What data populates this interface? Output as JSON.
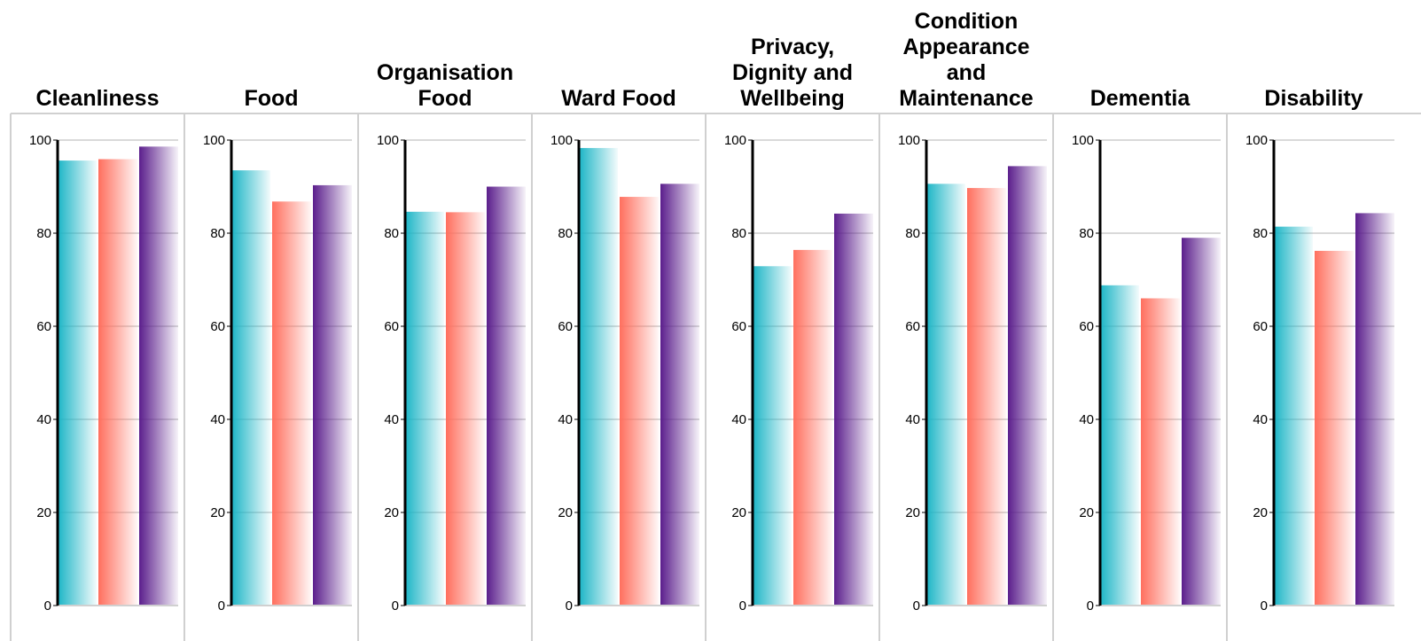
{
  "chart_data": {
    "type": "bar",
    "layout": "small-multiples",
    "ylim": [
      0,
      100
    ],
    "yticks": [
      "0",
      "20",
      "40",
      "60",
      "80",
      "100"
    ],
    "grid": true,
    "legend": "none",
    "series_colors": [
      "#1bb5c6",
      "#ff6f5e",
      "#5b1e8c"
    ],
    "panels": [
      {
        "title": [
          "Cleanliness"
        ],
        "values": [
          95.6,
          95.9,
          98.6
        ]
      },
      {
        "title": [
          "Food"
        ],
        "values": [
          93.5,
          86.8,
          90.3
        ]
      },
      {
        "title": [
          "Organisation",
          "Food"
        ],
        "values": [
          84.6,
          84.5,
          90.0
        ]
      },
      {
        "title": [
          "Ward Food"
        ],
        "values": [
          98.3,
          87.8,
          90.6
        ]
      },
      {
        "title": [
          "Privacy,",
          "Dignity and",
          "Wellbeing"
        ],
        "values": [
          72.9,
          76.4,
          84.2
        ]
      },
      {
        "title": [
          "Condition",
          "Appearance",
          "and",
          "Maintenance"
        ],
        "values": [
          90.6,
          89.7,
          94.4
        ]
      },
      {
        "title": [
          "Dementia"
        ],
        "values": [
          68.8,
          66.0,
          79.0
        ]
      },
      {
        "title": [
          "Disability"
        ],
        "values": [
          81.4,
          76.2,
          84.3
        ]
      }
    ]
  }
}
